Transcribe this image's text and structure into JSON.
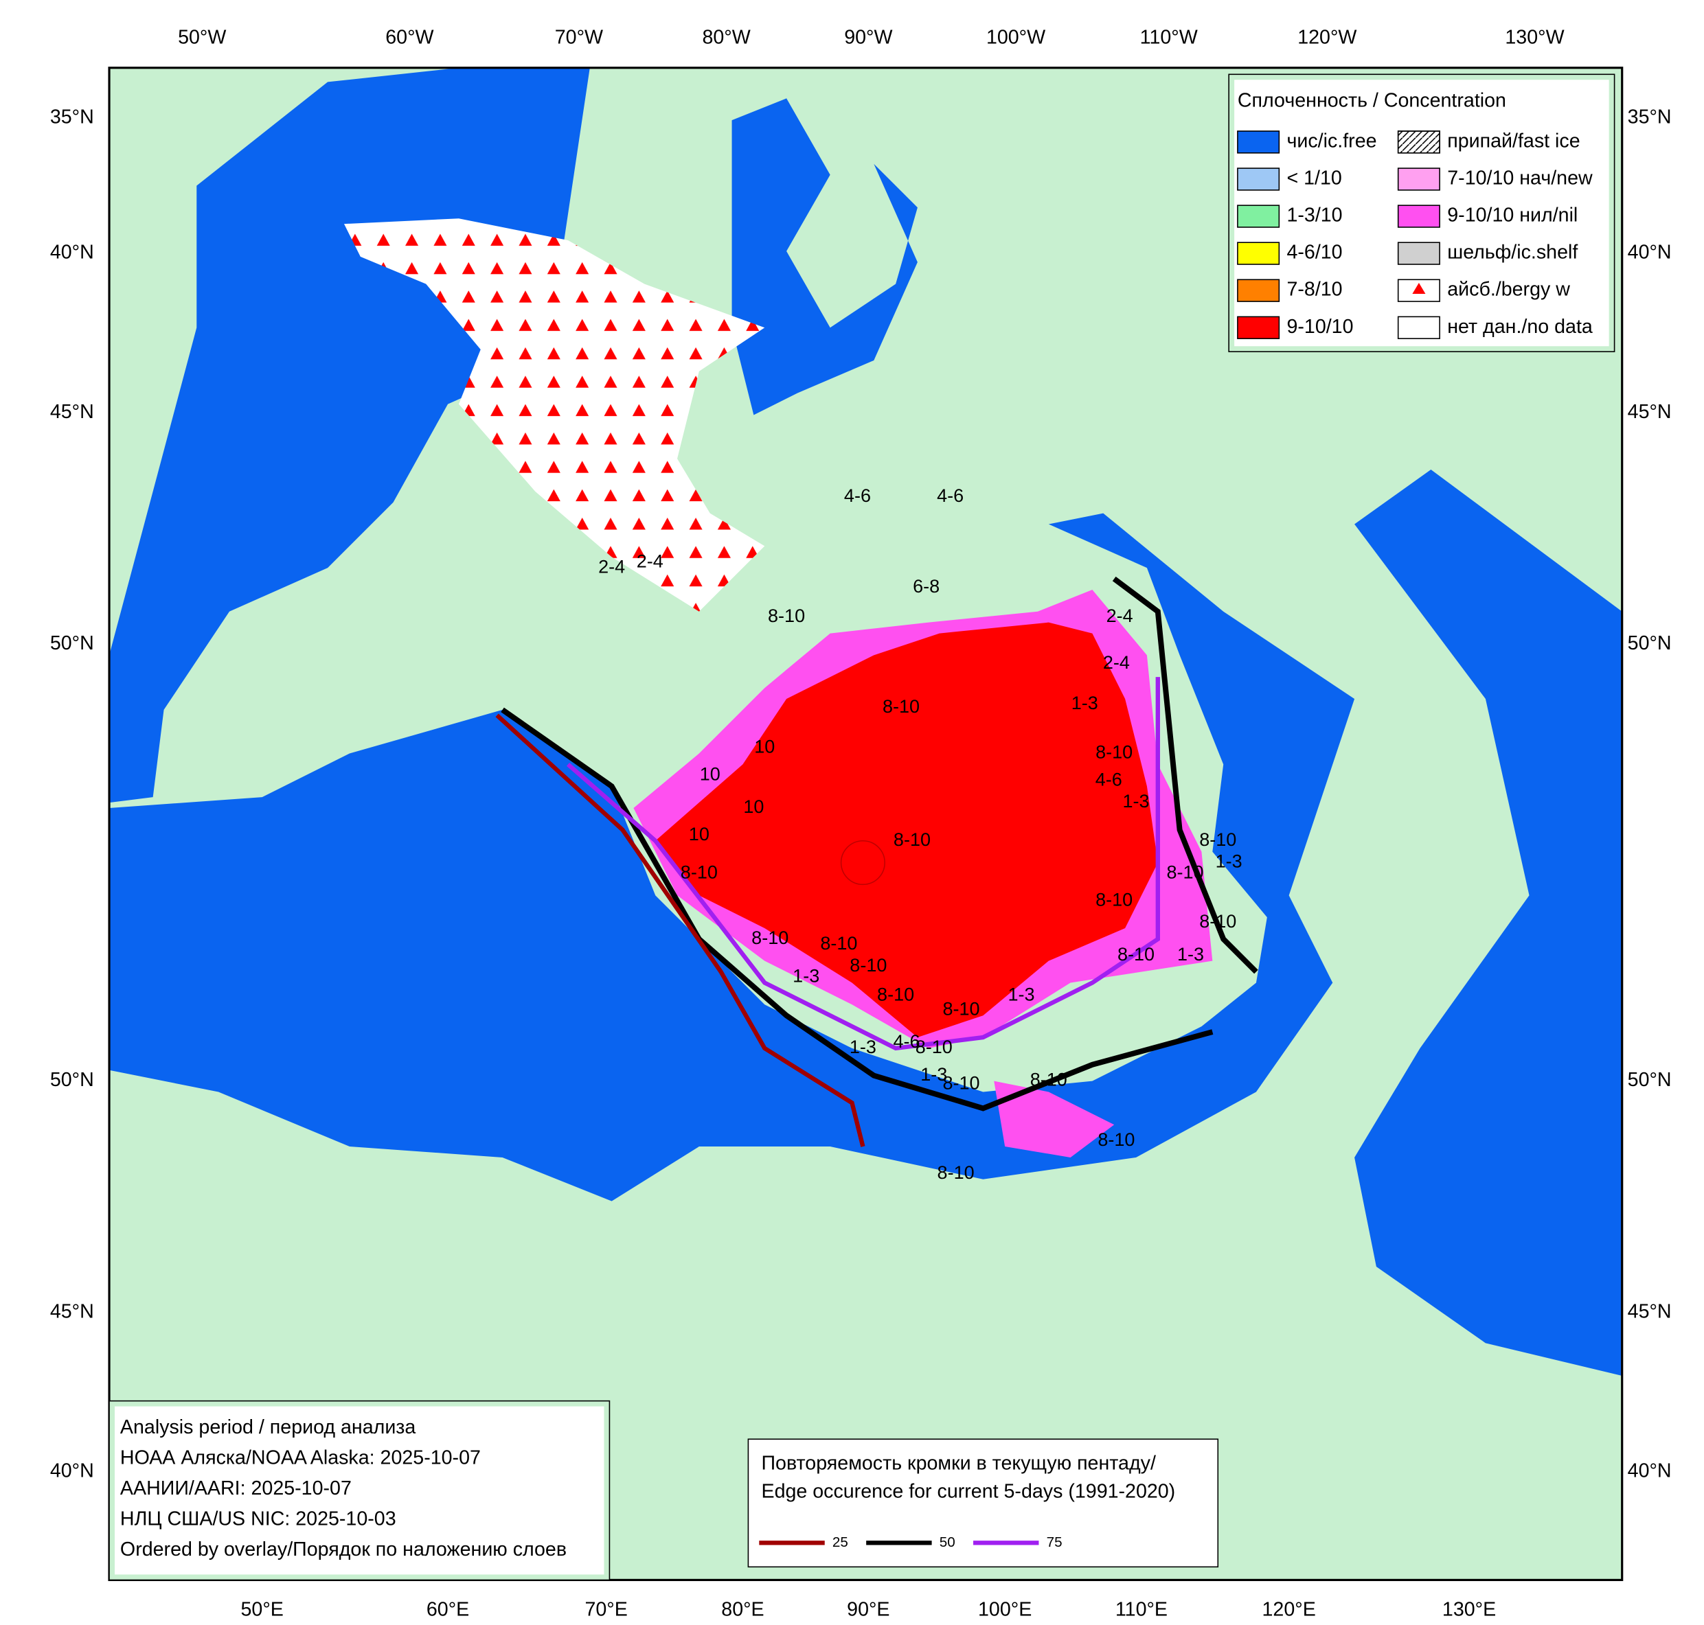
{
  "lon_top": [
    "50°W",
    "60°W",
    "70°W",
    "80°W",
    "90°W",
    "100°W",
    "110°W",
    "120°W",
    "130°W"
  ],
  "lon_bottom": [
    "50°E",
    "60°E",
    "70°E",
    "80°E",
    "90°E",
    "100°E",
    "110°E",
    "120°E",
    "130°E"
  ],
  "lat_left": [
    "35°N",
    "40°N",
    "45°N",
    "50°N",
    "50°N",
    "45°N",
    "40°N"
  ],
  "lat_right": [
    "35°N",
    "40°N",
    "45°N",
    "50°N",
    "50°N",
    "45°N",
    "40°N"
  ],
  "legend": {
    "title": "Сплоченность / Concentration",
    "items": [
      {
        "label": "чис/ic.free",
        "color": "#0a64f0"
      },
      {
        "label": "< 1/10",
        "color": "#9ec8f5"
      },
      {
        "label": "1-3/10",
        "color": "#80f0a0"
      },
      {
        "label": "4-6/10",
        "color": "#ffff00"
      },
      {
        "label": "7-8/10",
        "color": "#ff8000"
      },
      {
        "label": "9-10/10",
        "color": "#ff0000"
      },
      {
        "label": "припай/fast ice",
        "color": "#ffffff"
      },
      {
        "label": "7-10/10 нач/new",
        "color": "#ffa0f0"
      },
      {
        "label": "9-10/10 нил/nil",
        "color": "#ff50f0"
      },
      {
        "label": "шельф/ic.shelf",
        "color": "#d0d0d0"
      },
      {
        "label": "айсб./bergy w",
        "color": "#ffffff"
      },
      {
        "label": "нет дан./no data",
        "color": "#ffffff"
      }
    ]
  },
  "info": {
    "lines": [
      "Analysis period / период анализа",
      "НОАА Аляска/NOAA Alaska: 2025-10-07",
      "ААНИИ/AARI: 2025-10-07",
      "НЛЦ США/US NIC: 2025-10-03",
      "Ordered by overlay/Порядок по наложению слоев"
    ]
  },
  "edge_legend": {
    "title_lines": [
      "Повторяемость кромки в текущую пентаду/",
      "Edge occurence for current 5-days (1991-2020)"
    ],
    "lines": [
      {
        "label": "25",
        "color": "#a00000"
      },
      {
        "label": "50",
        "color": "#000000"
      },
      {
        "label": "75",
        "color": "#a020f0"
      }
    ]
  },
  "ice_labels": [
    "8-10",
    "10",
    "10",
    "10",
    "8-10",
    "1-3",
    "4-6",
    "8-10",
    "8-10",
    "8-10",
    "8-10",
    "1-3",
    "8-10",
    "8-10",
    "1-3",
    "8-10",
    "8-10",
    "1-3",
    "8-10",
    "4-6",
    "2-4",
    "1-3",
    "8-10",
    "8-10",
    "8-10",
    "2-4",
    "4-6",
    "4-6",
    "2-4",
    "2-4",
    "8-10",
    "1-3",
    "1-3",
    "8-10",
    "8-10",
    "1-3",
    "6-8",
    "8-10",
    "10",
    "8-10",
    "8-10"
  ]
}
